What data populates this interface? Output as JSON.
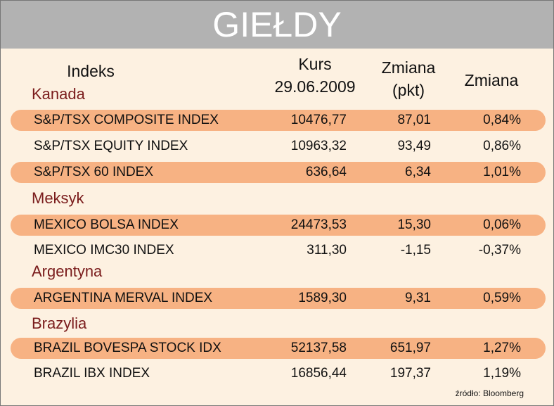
{
  "header": {
    "title": "GIEŁDY"
  },
  "columns": [
    [
      "Indeks"
    ],
    [
      "Kurs",
      "29.06.2009"
    ],
    [
      "Zmiana",
      "(pkt)"
    ],
    [
      "Zmiana"
    ]
  ],
  "groups": [
    {
      "name": "Kanada",
      "rows": [
        [
          "S&P/TSX COMPOSITE INDEX",
          "10476,77",
          "87,01",
          "0,84%"
        ],
        [
          "S&P/TSX EQUITY INDEX",
          "10963,32",
          "93,49",
          "0,86%"
        ],
        [
          "S&P/TSX 60 INDEX",
          "636,64",
          "6,34",
          "1,01%"
        ]
      ]
    },
    {
      "name": "Meksyk",
      "rows": [
        [
          "MEXICO BOLSA INDEX",
          "24473,53",
          "15,30",
          "0,06%"
        ],
        [
          "MEXICO IMC30 INDEX",
          "311,30",
          "-1,15",
          "-0,37%"
        ]
      ]
    },
    {
      "name": "Argentyna",
      "rows": [
        [
          "ARGENTINA MERVAL INDEX",
          "1589,30",
          "9,31",
          "0,59%"
        ]
      ]
    },
    {
      "name": "Brazylia",
      "rows": [
        [
          "BRAZIL BOVESPA STOCK IDX",
          "52137,58",
          "651,97",
          "1,27%"
        ],
        [
          "BRAZIL IBX INDEX",
          "16856,44",
          "197,37",
          "1,19%"
        ]
      ]
    }
  ],
  "source": "źródło: Bloomberg"
}
